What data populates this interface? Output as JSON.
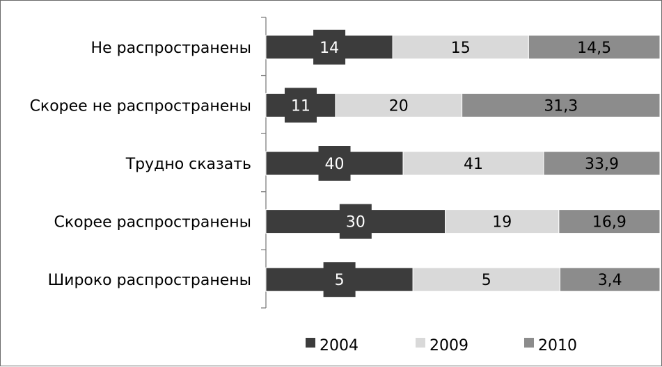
{
  "chart_data": {
    "type": "bar",
    "stacked": true,
    "orientation": "horizontal",
    "categories": [
      "Не распространены",
      "Скорее не распространены",
      "Трудно сказать",
      "Скорее распространены",
      "Широко распространены"
    ],
    "series": [
      {
        "name": "2004",
        "values": [
          14,
          11,
          40,
          30,
          5
        ],
        "labels": [
          "14",
          "11",
          "40",
          "30",
          "5"
        ],
        "color": "#3c3c3c",
        "label_color": "#ffffff"
      },
      {
        "name": "2009",
        "values": [
          15,
          20,
          41,
          19,
          5
        ],
        "labels": [
          "15",
          "20",
          "41",
          "19",
          "5"
        ],
        "color": "#d9d9d9",
        "label_color": "#000000"
      },
      {
        "name": "2010",
        "values": [
          14.5,
          31.3,
          33.9,
          16.9,
          3.4
        ],
        "labels": [
          "14,5",
          "31,3",
          "33,9",
          "16,9",
          "3,4"
        ],
        "color": "#8c8c8c",
        "label_color": "#000000"
      }
    ],
    "bars_normalized_to_full_width": true,
    "grid": false,
    "legend_position": "bottom"
  }
}
